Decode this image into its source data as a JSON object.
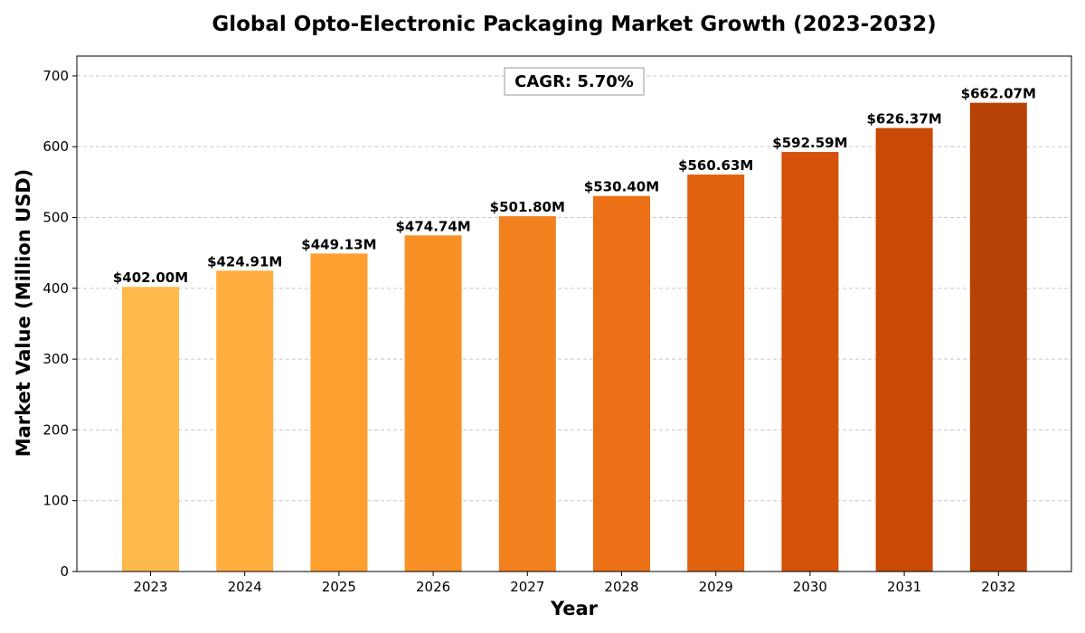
{
  "chart_data": {
    "type": "bar",
    "title": "Global Opto-Electronic Packaging Market Growth (2023-2032)",
    "xlabel": "Year",
    "ylabel": "Market Value (Million USD)",
    "categories": [
      "2023",
      "2024",
      "2025",
      "2026",
      "2027",
      "2028",
      "2029",
      "2030",
      "2031",
      "2032"
    ],
    "values": [
      402.0,
      424.91,
      449.13,
      474.74,
      501.8,
      530.4,
      560.63,
      592.59,
      626.37,
      662.07
    ],
    "data_labels": [
      "$402.00M",
      "$424.91M",
      "$449.13M",
      "$474.74M",
      "$501.80M",
      "$530.40M",
      "$560.63M",
      "$592.59M",
      "$626.37M",
      "$662.07M"
    ],
    "colors": [
      "#FFB84A",
      "#FFAE3F",
      "#FE9F30",
      "#F89026",
      "#F3801F",
      "#EB7015",
      "#E0620F",
      "#D4520A",
      "#C84A04",
      "#B74205"
    ],
    "ylim": [
      0,
      728
    ],
    "yticks": [
      0,
      100,
      200,
      300,
      400,
      500,
      600,
      700
    ],
    "grid": true,
    "annotation": "CAGR: 5.70%"
  }
}
